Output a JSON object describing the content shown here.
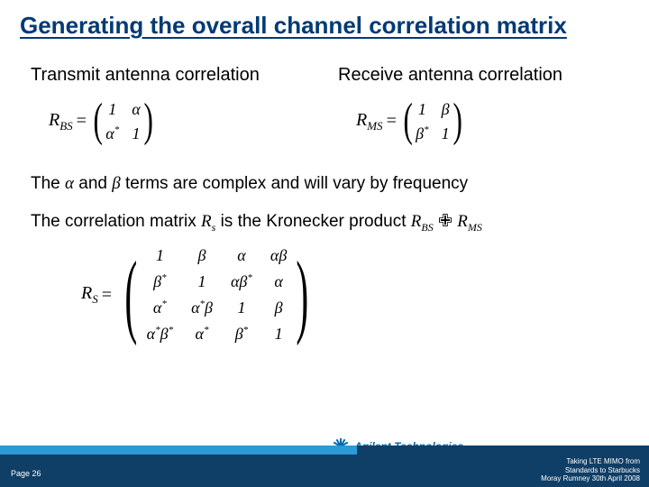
{
  "title": "Generating the overall channel correlation matrix",
  "transmit": {
    "heading": "Transmit antenna correlation",
    "lhs": "R",
    "lhs_sub": "BS",
    "cells": [
      "1",
      "α",
      "α*",
      "1"
    ]
  },
  "receive": {
    "heading": "Receive antenna correlation",
    "lhs": "R",
    "lhs_sub": "MS",
    "cells": [
      "1",
      "β",
      "β*",
      "1"
    ]
  },
  "line1_a": "The ",
  "line1_alpha": "α",
  "line1_mid": " and ",
  "line1_beta": "β",
  "line1_b": " terms are complex and will vary by frequency",
  "line2_a": "The correlation matrix ",
  "line2_Rs": "R",
  "line2_Rs_sub": "s",
  "line2_mid": " is the Kronecker product ",
  "line2_Rbs": "R",
  "line2_Rbs_sub": "BS",
  "line2_kron": " ✙ ",
  "line2_Rms": "R",
  "line2_Rms_sub": "MS",
  "rs": {
    "lhs": "R",
    "lhs_sub": "S",
    "cells": [
      "1",
      "β",
      "α",
      "αβ",
      "β*",
      "1",
      "αβ*",
      "α",
      "α*",
      "α*β",
      "1",
      "β",
      "α*β*",
      "α*",
      "β*",
      "1"
    ]
  },
  "footer": {
    "page": "Page 26",
    "line1": "Taking LTE MIMO from",
    "line2": "Standards to Starbucks",
    "line3": "Moray Rumney 30th April 2008",
    "logo_text": "Agilent Technologies"
  },
  "colors": {
    "title": "#003a75",
    "bar_light": "#2a9bd6",
    "bar_dark": "#0f3e66",
    "logo": "#0069aa"
  }
}
